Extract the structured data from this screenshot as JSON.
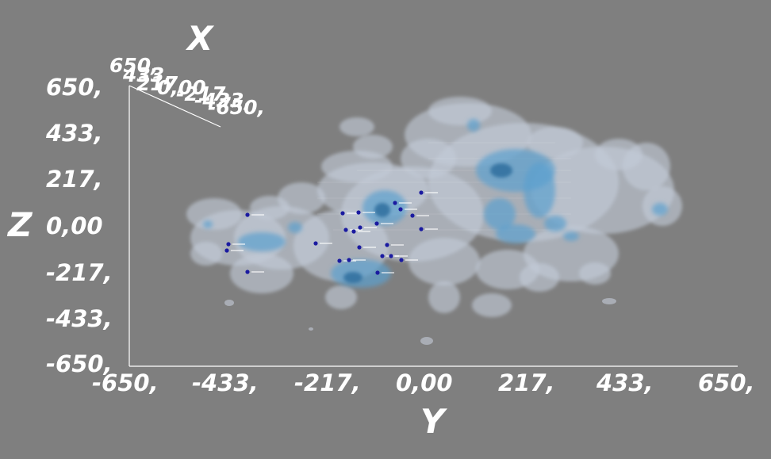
{
  "axes": {
    "x": {
      "title": "X",
      "ticks": [
        "650,",
        "433,",
        "217,",
        "0,00",
        "-217,",
        "-433,",
        "-650,"
      ]
    },
    "y": {
      "title": "Y",
      "ticks": [
        "-650,",
        "-433,",
        "-217,",
        "0,00",
        "217,",
        "433,",
        "650,"
      ]
    },
    "z": {
      "title": "Z",
      "ticks": [
        "650,",
        "433,",
        "217,",
        "0,00",
        "-217,",
        "-433,",
        "-650,"
      ]
    }
  },
  "colors": {
    "background": "#7f7f7f",
    "axis": "#ffffff",
    "outer_isosurface": "#c4ccd8",
    "inner_isosurface": "#5b9fce",
    "core": "#2d6e9e",
    "points": "#1a1aa0"
  }
}
